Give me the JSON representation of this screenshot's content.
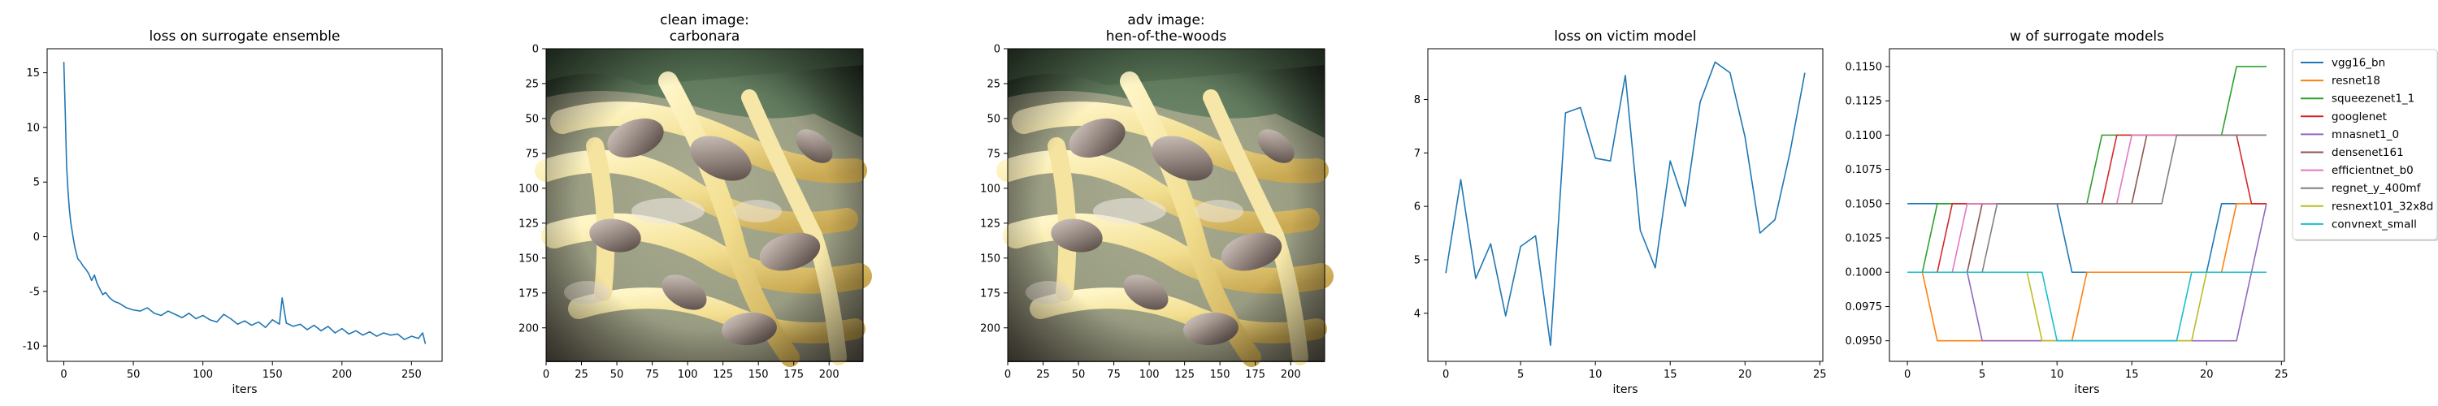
{
  "chart_data": [
    {
      "type": "line",
      "title": "loss on surrogate ensemble",
      "xlabel": "iters",
      "ylabel": "",
      "xlim": [
        -12,
        272
      ],
      "ylim": [
        -11.4,
        17.2
      ],
      "xticks": [
        0,
        50,
        100,
        150,
        200,
        250
      ],
      "yticks": [
        -10,
        -5,
        0,
        5,
        10,
        15
      ],
      "grid": false,
      "series": [
        {
          "color": "#1f77b4",
          "x": [
            0,
            1,
            2,
            3,
            4,
            5,
            6,
            7,
            8,
            9,
            10,
            12,
            14,
            16,
            18,
            20,
            22,
            24,
            26,
            28,
            30,
            33,
            36,
            40,
            45,
            50,
            55,
            60,
            65,
            70,
            75,
            80,
            85,
            90,
            95,
            100,
            105,
            110,
            115,
            120,
            125,
            130,
            135,
            140,
            145,
            150,
            155,
            157,
            160,
            165,
            170,
            175,
            180,
            185,
            190,
            195,
            200,
            205,
            210,
            215,
            220,
            225,
            230,
            235,
            240,
            245,
            250,
            255,
            258,
            260
          ],
          "y": [
            16,
            11.5,
            6.5,
            4.2,
            2.5,
            1.3,
            0.5,
            -0.3,
            -1.0,
            -1.5,
            -2.0,
            -2.3,
            -2.7,
            -3.0,
            -3.4,
            -4.0,
            -3.5,
            -4.3,
            -4.8,
            -5.3,
            -5.1,
            -5.6,
            -5.9,
            -6.1,
            -6.5,
            -6.7,
            -6.8,
            -6.5,
            -7.0,
            -7.2,
            -6.8,
            -7.1,
            -7.4,
            -7.0,
            -7.5,
            -7.2,
            -7.6,
            -7.8,
            -7.1,
            -7.5,
            -8.0,
            -7.7,
            -8.1,
            -7.8,
            -8.3,
            -7.6,
            -8.0,
            -5.6,
            -7.9,
            -8.2,
            -8.0,
            -8.5,
            -8.1,
            -8.6,
            -8.2,
            -8.8,
            -8.4,
            -8.9,
            -8.6,
            -9.0,
            -8.7,
            -9.1,
            -8.8,
            -9.0,
            -8.9,
            -9.4,
            -9.1,
            -9.3,
            -8.8,
            -9.8
          ]
        }
      ]
    },
    {
      "type": "image",
      "title": "clean image:\ncarbonara",
      "xticks": [
        0,
        25,
        50,
        75,
        100,
        125,
        150,
        175,
        200
      ],
      "yticks": [
        0,
        25,
        50,
        75,
        100,
        125,
        150,
        175,
        200
      ],
      "xlim": [
        0,
        224
      ],
      "ylim": [
        224,
        0
      ]
    },
    {
      "type": "image",
      "title": "adv image:\nhen-of-the-woods",
      "xticks": [
        0,
        25,
        50,
        75,
        100,
        125,
        150,
        175,
        200
      ],
      "yticks": [
        0,
        25,
        50,
        75,
        100,
        125,
        150,
        175,
        200
      ],
      "xlim": [
        0,
        224
      ],
      "ylim": [
        224,
        0
      ]
    },
    {
      "type": "line",
      "title": "loss on victim model",
      "xlabel": "iters",
      "ylabel": "",
      "xlim": [
        -1.2,
        25.2
      ],
      "ylim": [
        3.1,
        8.95
      ],
      "xticks": [
        0,
        5,
        10,
        15,
        20,
        25
      ],
      "yticks": [
        4,
        5,
        6,
        7,
        8
      ],
      "grid": false,
      "series": [
        {
          "color": "#1f77b4",
          "x": [
            0,
            1,
            2,
            3,
            4,
            5,
            6,
            7,
            8,
            9,
            10,
            11,
            12,
            13,
            14,
            15,
            16,
            17,
            18,
            19,
            20,
            21,
            22,
            23,
            24
          ],
          "y": [
            4.75,
            6.5,
            4.65,
            5.3,
            3.95,
            5.25,
            5.45,
            3.4,
            7.75,
            7.85,
            6.9,
            6.85,
            8.45,
            5.55,
            4.85,
            6.85,
            6.0,
            7.95,
            8.7,
            8.5,
            7.3,
            5.5,
            5.75,
            7.0,
            8.5
          ]
        }
      ]
    },
    {
      "type": "line",
      "title": "w of surrogate models",
      "xlabel": "iters",
      "ylabel": "",
      "xlim": [
        -1.2,
        25.2
      ],
      "ylim": [
        0.0935,
        0.1163
      ],
      "xticks": [
        0,
        5,
        10,
        15,
        20,
        25
      ],
      "yticks": [
        0.095,
        0.0975,
        0.1,
        0.1025,
        0.105,
        0.1075,
        0.11,
        0.1125,
        0.115
      ],
      "ytick_labels": [
        "0.0950",
        "0.0975",
        "0.1000",
        "0.1025",
        "0.1050",
        "0.1075",
        "0.1100",
        "0.1125",
        "0.1150"
      ],
      "grid": false,
      "legend_position": "outside-right",
      "x": [
        0,
        1,
        2,
        3,
        4,
        5,
        6,
        7,
        8,
        9,
        10,
        11,
        12,
        13,
        14,
        15,
        16,
        17,
        18,
        19,
        20,
        21,
        22,
        23,
        24
      ],
      "series": [
        {
          "name": "vgg16_bn",
          "color": "#1f77b4",
          "values": [
            0.105,
            0.105,
            0.105,
            0.105,
            0.105,
            0.105,
            0.105,
            0.105,
            0.105,
            0.105,
            0.105,
            0.1,
            0.1,
            0.1,
            0.1,
            0.1,
            0.1,
            0.1,
            0.1,
            0.1,
            0.1,
            0.105,
            0.105,
            0.105,
            0.105
          ]
        },
        {
          "name": "resnet18",
          "color": "#ff7f0e",
          "values": [
            0.1,
            0.1,
            0.095,
            0.095,
            0.095,
            0.095,
            0.095,
            0.095,
            0.095,
            0.095,
            0.095,
            0.095,
            0.1,
            0.1,
            0.1,
            0.1,
            0.1,
            0.1,
            0.1,
            0.1,
            0.1,
            0.1,
            0.105,
            0.105,
            0.105
          ]
        },
        {
          "name": "squeezenet1_1",
          "color": "#2ca02c",
          "values": [
            0.1,
            0.1,
            0.105,
            0.105,
            0.105,
            0.105,
            0.105,
            0.105,
            0.105,
            0.105,
            0.105,
            0.105,
            0.105,
            0.11,
            0.11,
            0.11,
            0.11,
            0.11,
            0.11,
            0.11,
            0.11,
            0.11,
            0.115,
            0.115,
            0.115
          ]
        },
        {
          "name": "googlenet",
          "color": "#d62728",
          "values": [
            0.1,
            0.1,
            0.1,
            0.105,
            0.105,
            0.105,
            0.105,
            0.105,
            0.105,
            0.105,
            0.105,
            0.105,
            0.105,
            0.105,
            0.11,
            0.11,
            0.11,
            0.11,
            0.11,
            0.11,
            0.11,
            0.11,
            0.11,
            0.105,
            0.105
          ]
        },
        {
          "name": "mnasnet1_0",
          "color": "#9467bd",
          "values": [
            0.1,
            0.1,
            0.1,
            0.1,
            0.1,
            0.095,
            0.095,
            0.095,
            0.095,
            0.095,
            0.095,
            0.095,
            0.095,
            0.095,
            0.095,
            0.095,
            0.095,
            0.095,
            0.095,
            0.095,
            0.095,
            0.095,
            0.095,
            0.1,
            0.105
          ]
        },
        {
          "name": "densenet161",
          "color": "#8c564b",
          "values": [
            0.1,
            0.1,
            0.1,
            0.1,
            0.1,
            0.105,
            0.105,
            0.105,
            0.105,
            0.105,
            0.105,
            0.105,
            0.105,
            0.105,
            0.105,
            0.105,
            0.11,
            0.11,
            0.11,
            0.11,
            0.11,
            0.11,
            0.11,
            0.11,
            0.11
          ]
        },
        {
          "name": "efficientnet_b0",
          "color": "#e377c2",
          "values": [
            0.1,
            0.1,
            0.1,
            0.1,
            0.105,
            0.105,
            0.105,
            0.105,
            0.105,
            0.105,
            0.105,
            0.105,
            0.105,
            0.105,
            0.105,
            0.11,
            0.11,
            0.11,
            0.11,
            0.11,
            0.11,
            0.11,
            0.11,
            0.11,
            0.11
          ]
        },
        {
          "name": "regnet_y_400mf",
          "color": "#7f7f7f",
          "values": [
            0.1,
            0.1,
            0.1,
            0.1,
            0.1,
            0.1,
            0.105,
            0.105,
            0.105,
            0.105,
            0.105,
            0.105,
            0.105,
            0.105,
            0.105,
            0.105,
            0.105,
            0.105,
            0.11,
            0.11,
            0.11,
            0.11,
            0.11,
            0.11,
            0.11
          ]
        },
        {
          "name": "resnext101_32x8d",
          "color": "#bcbd22",
          "values": [
            0.1,
            0.1,
            0.1,
            0.1,
            0.1,
            0.1,
            0.1,
            0.1,
            0.1,
            0.095,
            0.095,
            0.095,
            0.095,
            0.095,
            0.095,
            0.095,
            0.095,
            0.095,
            0.095,
            0.095,
            0.1,
            0.1,
            0.1,
            0.1,
            0.1
          ]
        },
        {
          "name": "convnext_small",
          "color": "#17becf",
          "values": [
            0.1,
            0.1,
            0.1,
            0.1,
            0.1,
            0.1,
            0.1,
            0.1,
            0.1,
            0.1,
            0.095,
            0.095,
            0.095,
            0.095,
            0.095,
            0.095,
            0.095,
            0.095,
            0.095,
            0.1,
            0.1,
            0.1,
            0.1,
            0.1,
            0.1
          ]
        }
      ]
    }
  ]
}
